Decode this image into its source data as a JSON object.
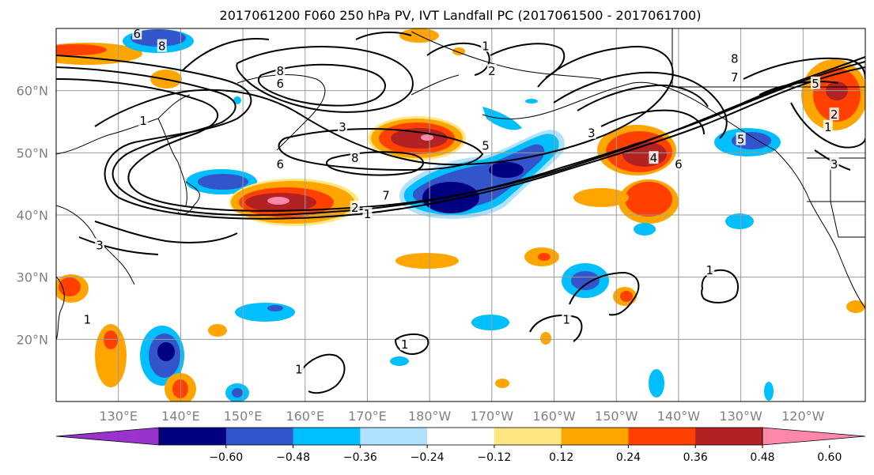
{
  "title": "2017061200 F060 250 hPa PV, IVT Landfall PC (2017061500 - 2017061700)",
  "lat_labels": [
    {
      "value": 60,
      "label": "60°N"
    },
    {
      "value": 50,
      "label": "50°N"
    },
    {
      "value": 40,
      "label": "40°N"
    },
    {
      "value": 30,
      "label": "30°N"
    },
    {
      "value": 20,
      "label": "20°N"
    }
  ],
  "lon_labels": [
    {
      "value": 130,
      "label": "130°E"
    },
    {
      "value": 140,
      "label": "140°E"
    },
    {
      "value": 150,
      "label": "150°E"
    },
    {
      "value": 160,
      "label": "160°E"
    },
    {
      "value": 170,
      "label": "170°E"
    },
    {
      "value": 180,
      "label": "180°W"
    },
    {
      "value": 190,
      "label": "170°W"
    },
    {
      "value": 200,
      "label": "160°W"
    },
    {
      "value": 210,
      "label": "150°W"
    },
    {
      "value": 220,
      "label": "140°W"
    },
    {
      "value": 230,
      "label": "130°W"
    },
    {
      "value": 240,
      "label": "120°W"
    }
  ],
  "map_extent": {
    "lon_min": 120,
    "lon_max": 250,
    "lat_min": 10,
    "lat_max": 70
  },
  "colorbar": {
    "colors": [
      "#9933cc",
      "#000080",
      "#3355cc",
      "#00bfff",
      "#b0e2ff",
      "#ffffff",
      "#ffe680",
      "#ffa500",
      "#ff4000",
      "#b22222",
      "#ff88aa"
    ],
    "ticks": [
      "−0.60",
      "−0.48",
      "−0.36",
      "−0.24",
      "−0.12",
      "0.12",
      "0.24",
      "0.36",
      "0.48",
      "0.60"
    ]
  },
  "contour_labels": [
    {
      "text": "6",
      "lon": 133,
      "lat": 69
    },
    {
      "text": "8",
      "lon": 137,
      "lat": 67
    },
    {
      "text": "1",
      "lon": 134,
      "lat": 55
    },
    {
      "text": "8",
      "lon": 156,
      "lat": 63
    },
    {
      "text": "6",
      "lon": 156,
      "lat": 61
    },
    {
      "text": "3",
      "lon": 166,
      "lat": 54
    },
    {
      "text": "8",
      "lon": 168,
      "lat": 49
    },
    {
      "text": "6",
      "lon": 156,
      "lat": 48
    },
    {
      "text": "7",
      "lon": 173,
      "lat": 43
    },
    {
      "text": "2",
      "lon": 168,
      "lat": 41
    },
    {
      "text": "1",
      "lon": 170,
      "lat": 40
    },
    {
      "text": "5",
      "lon": 189,
      "lat": 51
    },
    {
      "text": "1",
      "lon": 189,
      "lat": 67
    },
    {
      "text": "2",
      "lon": 190,
      "lat": 63
    },
    {
      "text": "3",
      "lon": 206,
      "lat": 53
    },
    {
      "text": "6",
      "lon": 220,
      "lat": 48
    },
    {
      "text": "4",
      "lon": 216,
      "lat": 49
    },
    {
      "text": "8",
      "lon": 229,
      "lat": 65
    },
    {
      "text": "7",
      "lon": 229,
      "lat": 62
    },
    {
      "text": "5",
      "lon": 230,
      "lat": 52
    },
    {
      "text": "2",
      "lon": 245,
      "lat": 56
    },
    {
      "text": "1",
      "lon": 244,
      "lat": 54
    },
    {
      "text": "3",
      "lon": 245,
      "lat": 48
    },
    {
      "text": "5",
      "lon": 242,
      "lat": 61
    },
    {
      "text": "1",
      "lon": 225,
      "lat": 31
    },
    {
      "text": "1",
      "lon": 202,
      "lat": 23
    },
    {
      "text": "1",
      "lon": 176,
      "lat": 19
    },
    {
      "text": "1",
      "lon": 159,
      "lat": 15
    },
    {
      "text": "3",
      "lon": 127,
      "lat": 35
    },
    {
      "text": "1",
      "lon": 125,
      "lat": 23
    }
  ]
}
